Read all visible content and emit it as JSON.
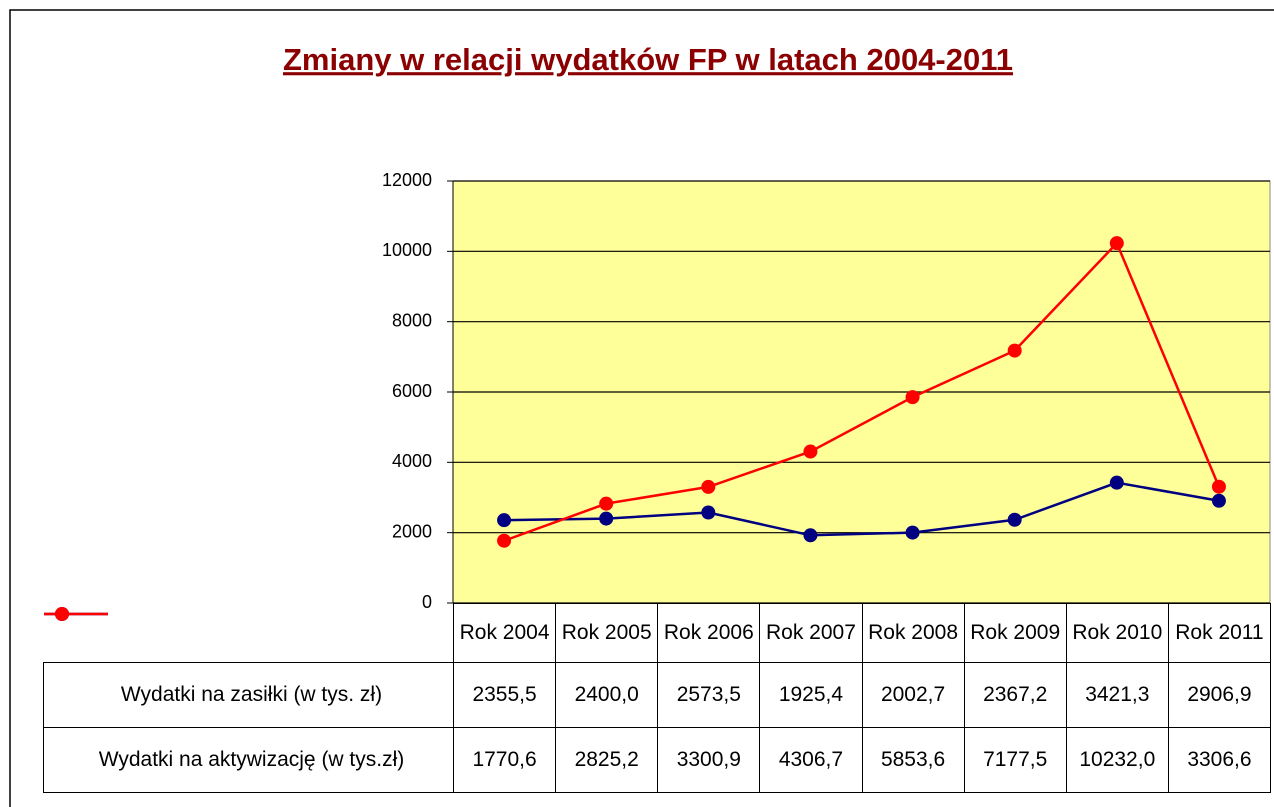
{
  "chart_data": {
    "type": "line",
    "title": "Zmiany w relacji wydatków FP w latach 2004-2011",
    "categories": [
      "Rok 2004",
      "Rok 2005",
      "Rok 2006",
      "Rok 2007",
      "Rok 2008",
      "Rok 2009",
      "Rok 2010",
      "Rok 2011"
    ],
    "series": [
      {
        "name": "Wydatki na zasiłki (w tys. zł)",
        "color": "#000080",
        "values": [
          2355.5,
          2400.0,
          2573.5,
          1925.4,
          2002.7,
          2367.2,
          3421.3,
          2906.9
        ],
        "value_labels": [
          "2355,5",
          "2400,0",
          "2573,5",
          "1925,4",
          "2002,7",
          "2367,2",
          "3421,3",
          "2906,9"
        ]
      },
      {
        "name": "Wydatki na aktywizację (w tys.zł)",
        "color": "#ff0000",
        "values": [
          1770.6,
          2825.2,
          3300.9,
          4306.7,
          5853.6,
          7177.5,
          10232.0,
          3306.6
        ],
        "value_labels": [
          "1770,6",
          "2825,2",
          "3300,9",
          "4306,7",
          "5853,6",
          "7177,5",
          "10232,0",
          "3306,6"
        ]
      }
    ],
    "ylim": [
      0,
      12000
    ],
    "yticks": [
      0,
      2000,
      4000,
      6000,
      8000,
      10000,
      12000
    ],
    "grid": true,
    "plot_background": "#ffff99",
    "data_table": true
  }
}
